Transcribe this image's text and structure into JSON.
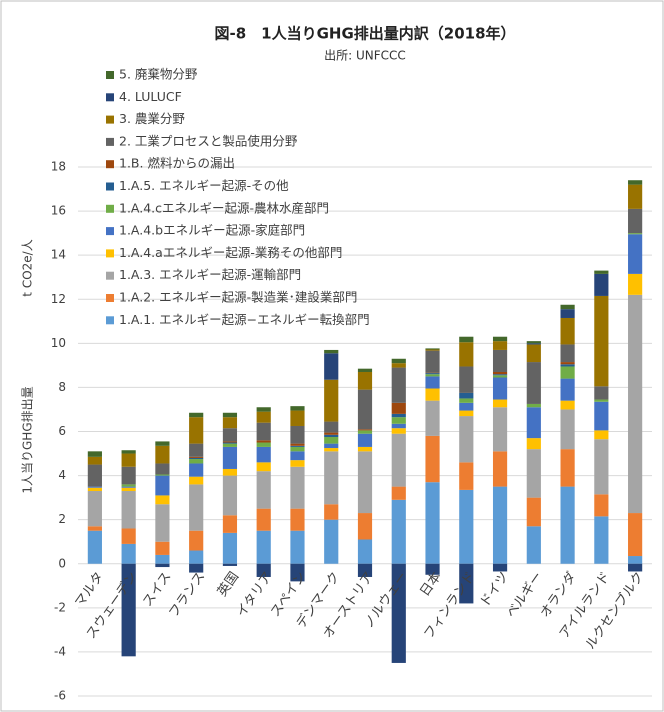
{
  "chart_data": {
    "type": "stacked-bar",
    "title": "図-8　1人当りGHG排出量内訳（2018年）",
    "subtitle": "出所: UNFCCC",
    "y_label": "1人当りGHG排出量",
    "y_unit": "t CO2e/人",
    "categories": [
      "マルタ",
      "スウェーデン",
      "スイス",
      "フランス",
      "英国",
      "イタリア",
      "スペイン",
      "デンマーク",
      "オーストリア",
      "ノルウェー",
      "日本",
      "フィンランド",
      "ドイツ",
      "ベルギー",
      "オランダ",
      "アイルランド",
      "ルクセンブルク"
    ],
    "ylim": [
      -6,
      18
    ],
    "yticks": [
      -6,
      -4,
      -2,
      0,
      2,
      4,
      6,
      8,
      10,
      12,
      14,
      16,
      18
    ],
    "grid": true,
    "series": [
      {
        "name": "1.A.1. エネルギー起源−エネルギー転換部門",
        "color": "#5b9bd5",
        "values": [
          1.5,
          0.9,
          0.4,
          0.6,
          1.4,
          1.5,
          1.5,
          2.0,
          1.1,
          2.9,
          3.7,
          3.35,
          3.5,
          1.7,
          3.5,
          2.15,
          0.35
        ]
      },
      {
        "name": "1.A.2. エネルギー起源-製造業･建設業部門",
        "color": "#ed7d31",
        "values": [
          0.2,
          0.7,
          0.6,
          0.9,
          0.8,
          1.0,
          1.0,
          0.7,
          1.2,
          0.6,
          2.1,
          1.25,
          1.6,
          1.3,
          1.7,
          1.0,
          1.95
        ]
      },
      {
        "name": "1.A.3. エネルギー起源-運輸部門",
        "color": "#a5a5a5",
        "values": [
          1.6,
          1.7,
          1.7,
          2.1,
          1.8,
          1.7,
          1.9,
          2.4,
          2.8,
          2.4,
          1.6,
          2.1,
          2.0,
          2.2,
          1.8,
          2.5,
          9.9
        ]
      },
      {
        "name": "1.A.4.aエネルギー起源-業務その他部門",
        "color": "#ffc000",
        "values": [
          0.15,
          0.15,
          0.4,
          0.35,
          0.3,
          0.4,
          0.3,
          0.15,
          0.2,
          0.25,
          0.55,
          0.25,
          0.35,
          0.5,
          0.4,
          0.4,
          0.95
        ]
      },
      {
        "name": "1.A.4.bエネルギー起源-家庭部門",
        "color": "#4472c4",
        "values": [
          0.05,
          0.05,
          0.9,
          0.6,
          1.0,
          0.7,
          0.4,
          0.2,
          0.6,
          0.2,
          0.55,
          0.35,
          1.0,
          1.4,
          1.0,
          1.3,
          1.8
        ]
      },
      {
        "name": "1.A.4.cエネルギー起源-農林水産部門",
        "color": "#70ad47",
        "values": [
          0,
          0.1,
          0.05,
          0.2,
          0.15,
          0.2,
          0.2,
          0.3,
          0.15,
          0.3,
          0.1,
          0.2,
          0.1,
          0.15,
          0.55,
          0.1,
          0.05
        ]
      },
      {
        "name": "1.A.5. エネルギー起源-その他",
        "color": "#255e91",
        "values": [
          0,
          0,
          0,
          0.05,
          0.05,
          0,
          0.05,
          0.1,
          0,
          0.15,
          0.05,
          0.25,
          0.05,
          0,
          0.1,
          0,
          0
        ]
      },
      {
        "name": "1.B. 燃料からの漏出",
        "color": "#9e480e",
        "values": [
          0,
          0,
          0,
          0.05,
          0.05,
          0.1,
          0.1,
          0.1,
          0.05,
          0.5,
          0.02,
          0,
          0.1,
          0,
          0.1,
          0,
          0
        ]
      },
      {
        "name": "2. 工業プロセスと製品使用分野",
        "color": "#636363",
        "values": [
          1.0,
          0.8,
          0.5,
          0.6,
          0.6,
          0.8,
          0.8,
          0.5,
          1.8,
          1.6,
          1.0,
          1.2,
          1.0,
          1.9,
          0.8,
          0.6,
          1.1
        ]
      },
      {
        "name": "3. 農業分野",
        "color": "#997300",
        "values": [
          0.35,
          0.6,
          0.8,
          1.2,
          0.5,
          0.5,
          0.7,
          1.9,
          0.8,
          0.2,
          0.05,
          1.1,
          0.4,
          0.8,
          1.2,
          4.1,
          1.1
        ]
      },
      {
        "name": "4. LULUCF",
        "color": "#264478",
        "values": [
          0,
          -4.2,
          -0.15,
          -0.4,
          -0.1,
          -0.6,
          -0.8,
          1.2,
          -0.6,
          -4.5,
          -0.5,
          -1.8,
          -0.35,
          0.05,
          0.4,
          1.0,
          -0.35
        ]
      },
      {
        "name": "5. 廃棄物分野",
        "color": "#43682b",
        "values": [
          0.25,
          0.15,
          0.2,
          0.2,
          0.2,
          0.2,
          0.2,
          0.15,
          0.15,
          0.2,
          0.05,
          0.25,
          0.2,
          0.1,
          0.2,
          0.15,
          0.2
        ]
      }
    ]
  }
}
